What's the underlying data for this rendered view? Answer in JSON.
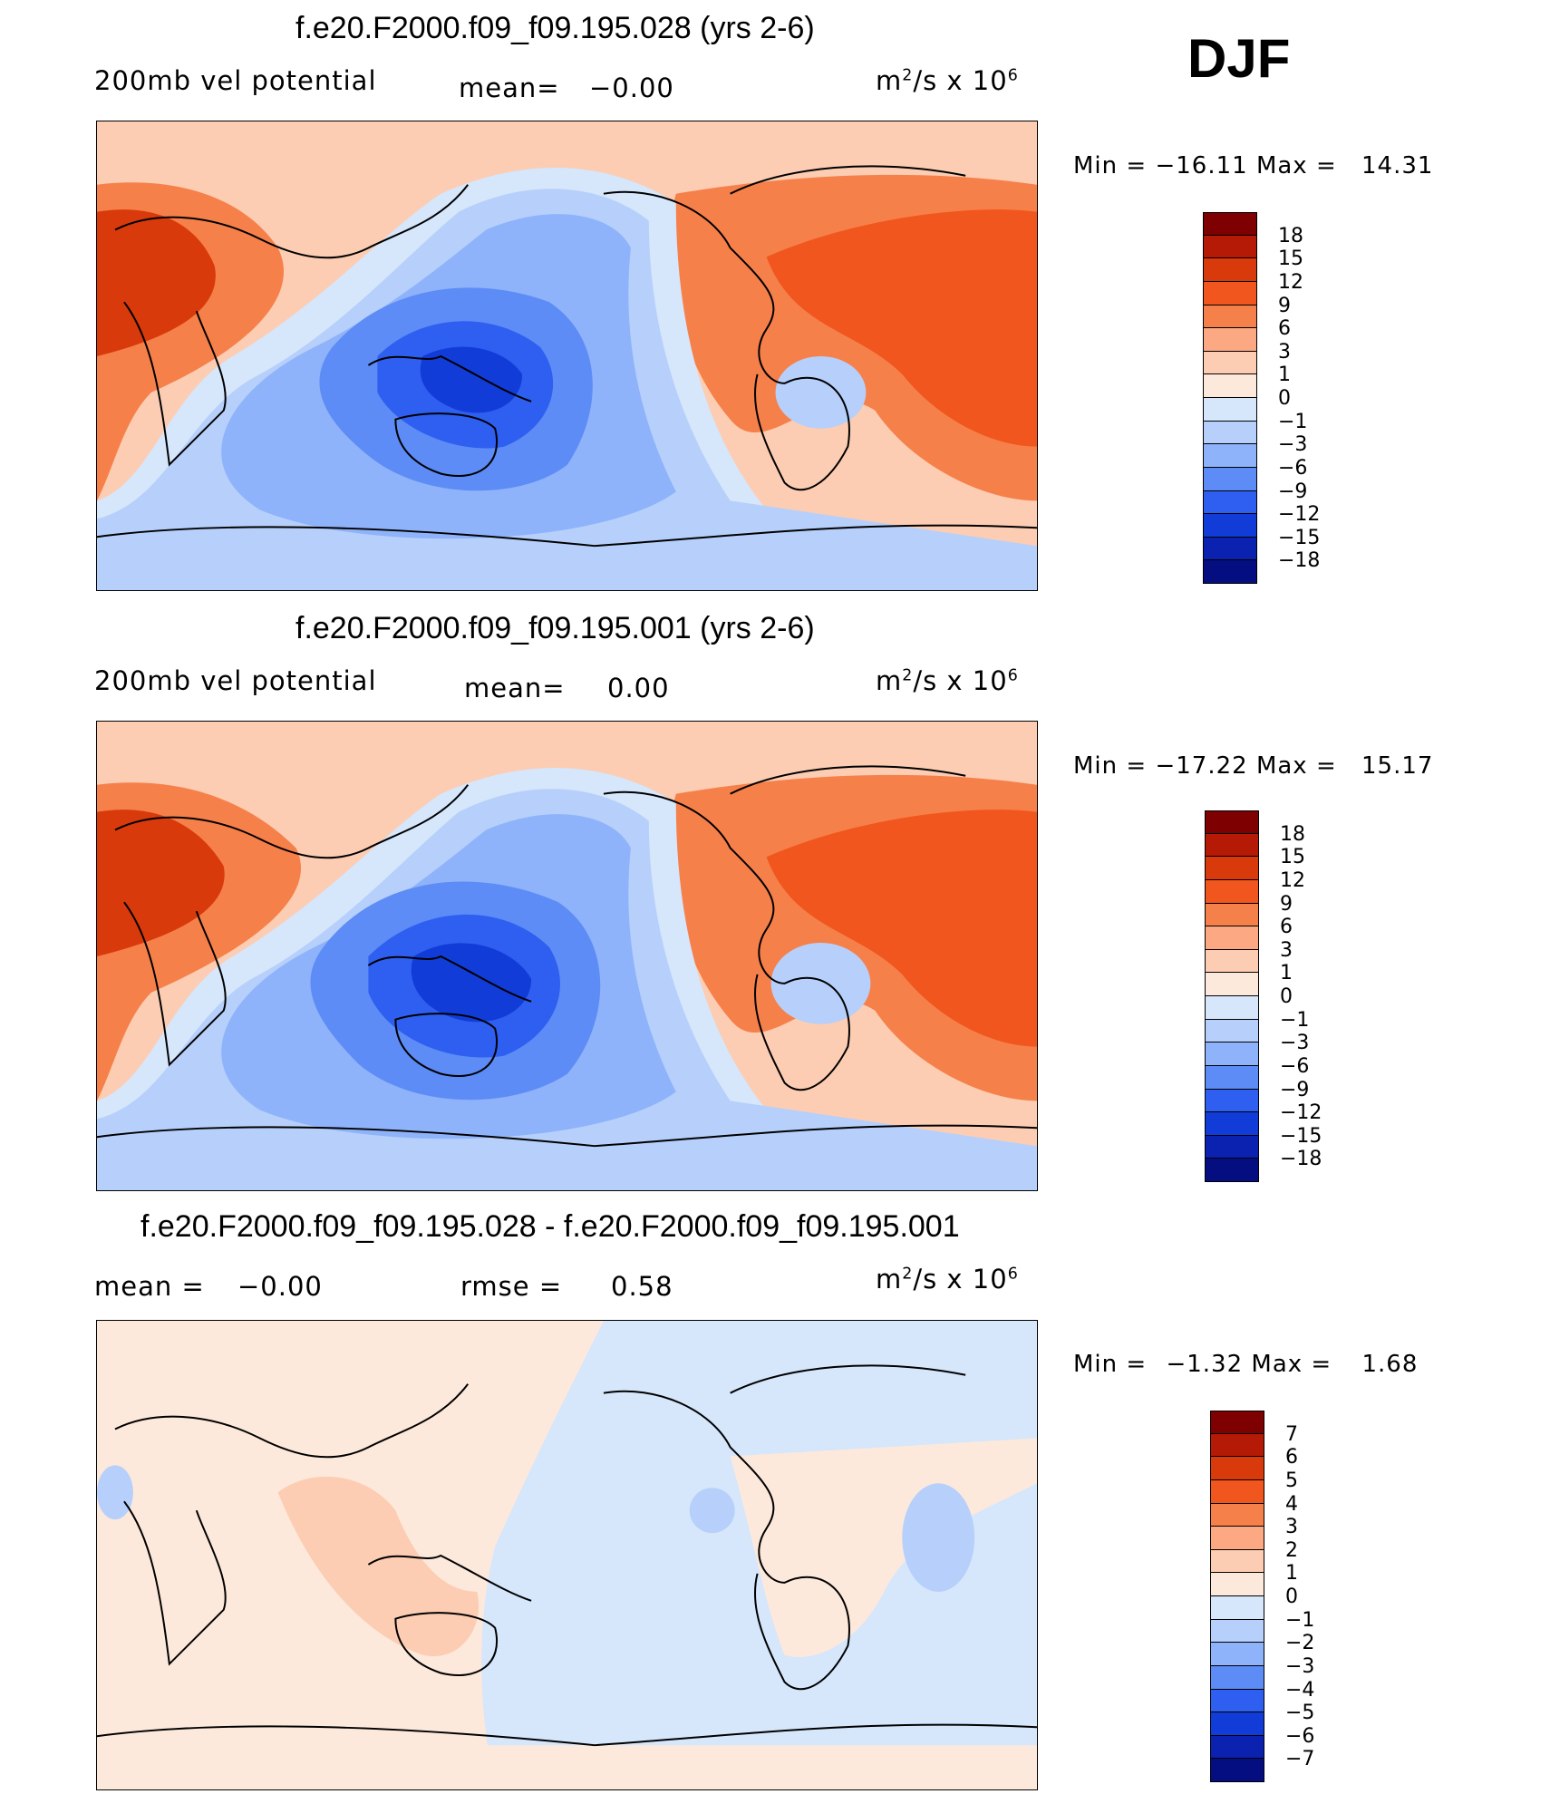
{
  "season": "DJF",
  "panels": [
    {
      "title": "f.e20.F2000.f09_f09.195.028 (yrs 2-6)",
      "left_label": "200mb vel potential",
      "mean_label": "mean=",
      "mean_value": "−0.00",
      "units_base": "m",
      "units_exp": "2",
      "units_mid": "/s x 10",
      "units_exp2": "6",
      "min_label": "Min =",
      "min_value": "−16.11",
      "max_label": "Max =",
      "max_value": "14.31",
      "colorbar_labels": [
        "18",
        "15",
        "12",
        "9",
        "6",
        "3",
        "1",
        "0",
        "−1",
        "−3",
        "−6",
        "−9",
        "−12",
        "−15",
        "−18"
      ]
    },
    {
      "title": "f.e20.F2000.f09_f09.195.001 (yrs 2-6)",
      "left_label": "200mb vel potential",
      "mean_label": "mean=",
      "mean_value": "0.00",
      "units_base": "m",
      "units_exp": "2",
      "units_mid": "/s x 10",
      "units_exp2": "6",
      "min_label": "Min =",
      "min_value": "−17.22",
      "max_label": "Max =",
      "max_value": "15.17",
      "colorbar_labels": [
        "18",
        "15",
        "12",
        "9",
        "6",
        "3",
        "1",
        "0",
        "−1",
        "−3",
        "−6",
        "−9",
        "−12",
        "−15",
        "−18"
      ]
    },
    {
      "title": "f.e20.F2000.f09_f09.195.028 - f.e20.F2000.f09_f09.195.001",
      "left_label": "mean =",
      "left_value": "−0.00",
      "rmse_label": "rmse =",
      "rmse_value": "0.58",
      "units_base": "m",
      "units_exp": "2",
      "units_mid": "/s x 10",
      "units_exp2": "6",
      "min_label": "Min =",
      "min_value": "−1.32",
      "max_label": "Max =",
      "max_value": "1.68",
      "colorbar_labels": [
        "7",
        "6",
        "5",
        "4",
        "3",
        "2",
        "1",
        "0",
        "−1",
        "−2",
        "−3",
        "−4",
        "−5",
        "−6",
        "−7"
      ]
    }
  ],
  "colors": {
    "scale": [
      "#7f0000",
      "#b41a05",
      "#d93a0c",
      "#f0561d",
      "#f6804a",
      "#fba883",
      "#fccdb3",
      "#fde9dc",
      "#d6e6fb",
      "#b6d0fb",
      "#8eb3fa",
      "#5d8cf6",
      "#2e5ff0",
      "#123cd8",
      "#0b22b0",
      "#050e80"
    ]
  }
}
